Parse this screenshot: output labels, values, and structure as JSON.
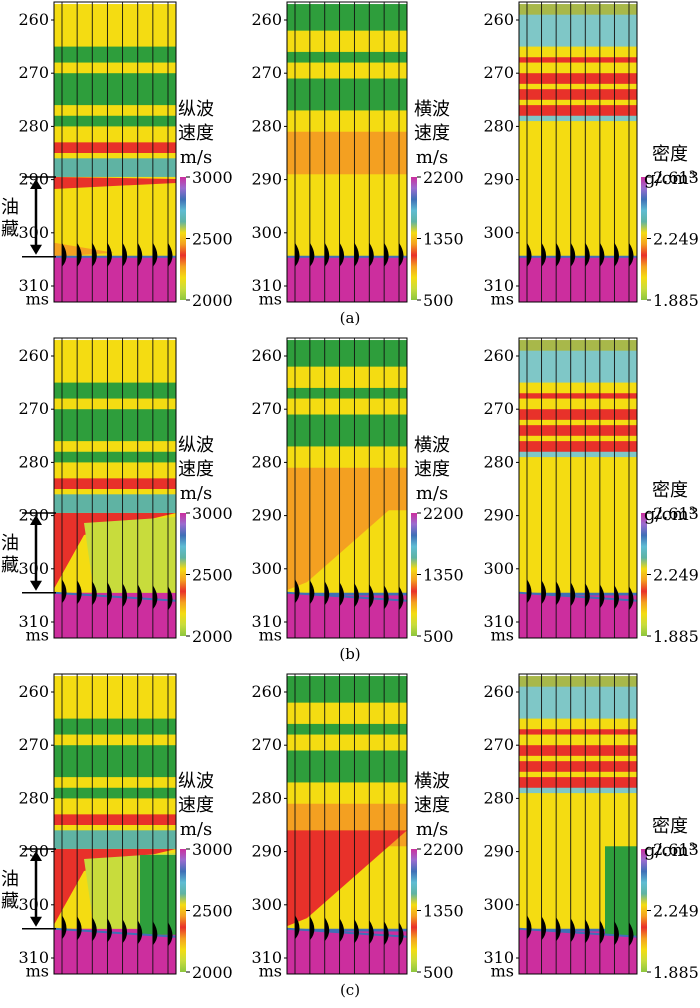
{
  "chart_data": {
    "type": "heatmap",
    "description_units": "two-way time (ms)",
    "axis": {
      "ticks": [
        260,
        270,
        280,
        290,
        300,
        310
      ],
      "unit_label": "ms",
      "ylim": [
        257,
        313
      ]
    },
    "reservoir": {
      "label_lines": [
        "油",
        "藏"
      ],
      "top_ms": 289.5,
      "base_ms": 304.5
    },
    "colorbars": {
      "vp": {
        "title_lines": [
          "纵波",
          "速度",
          "m/s"
        ],
        "ticks": [
          "3000",
          "2500",
          "2000"
        ],
        "range": [
          2000,
          3000
        ]
      },
      "vs": {
        "title_lines": [
          "横波",
          "速度",
          "m/s"
        ],
        "ticks": [
          "2200",
          "1350",
          "500"
        ],
        "range": [
          500,
          2200
        ]
      },
      "rho": {
        "title_lines": [
          "密度",
          "g/cm³"
        ],
        "ticks": [
          "2.613",
          "2.249",
          "1.885"
        ],
        "range": [
          1.885,
          2.613
        ]
      }
    },
    "rows": [
      {
        "caption": "(a)",
        "panels": [
          "vp",
          "vs",
          "rho"
        ]
      },
      {
        "caption": "(b)",
        "panels": [
          "vp",
          "vs",
          "rho"
        ]
      },
      {
        "caption": "(c)",
        "panels": [
          "vp",
          "vs",
          "rho"
        ]
      }
    ]
  }
}
